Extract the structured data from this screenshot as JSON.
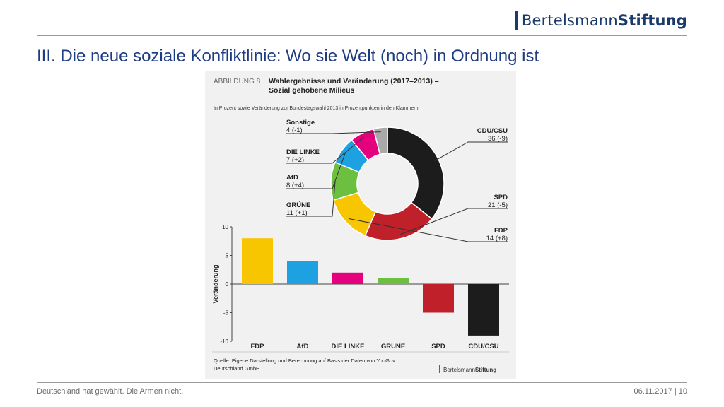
{
  "header": {
    "logo_light": "Bertelsmann",
    "logo_bold": "Stiftung",
    "title": "III. Die neue soziale Konfliktlinie: Wo sie Welt (noch) in Ordnung ist"
  },
  "footer": {
    "left": "Deutschland hat gewählt. Die Armen nicht.",
    "date": "06.11.2017",
    "sep": "|",
    "page": "10"
  },
  "figure": {
    "label": "ABBILDUNG 8",
    "title_line1": "Wahlergebnisse und Veränderung (2017–2013) –",
    "title_line2": "Sozial gehobene Milieus",
    "subtitle": "In Prozent sowie Veränderung zur Bundestagswahl 2013 in Prozentpunkten in den Klammern",
    "source_line1": "Quelle: Eigene Darstellung und Berechnung auf Basis der Daten von YouGov",
    "source_line2": "Deutschland GmbH.",
    "small_logo_light": "Bertelsmann",
    "small_logo_bold": "Stiftung"
  },
  "chart_data": [
    {
      "type": "pie",
      "donut": true,
      "slices": [
        {
          "name": "CDU/CSU",
          "value": 36,
          "label": "36 (-9)",
          "color": "#1c1c1c"
        },
        {
          "name": "SPD",
          "value": 21,
          "label": "21 (-5)",
          "color": "#c0202a"
        },
        {
          "name": "FDP",
          "value": 14,
          "label": "14 (+8)",
          "color": "#f7c600"
        },
        {
          "name": "GRÜNE",
          "value": 11,
          "label": "11 (+1)",
          "color": "#6cbf3f"
        },
        {
          "name": "AfD",
          "value": 8,
          "label": "8 (+4)",
          "color": "#1ea1e0"
        },
        {
          "name": "DIE LINKE",
          "value": 7,
          "label": "7 (+2)",
          "color": "#e5007d"
        },
        {
          "name": "Sonstige",
          "value": 4,
          "label": "4 (-1)",
          "color": "#a9a9a9"
        }
      ]
    },
    {
      "type": "bar",
      "categories": [
        "FDP",
        "AfD",
        "DIE LINKE",
        "GRÜNE",
        "SPD",
        "CDU/CSU"
      ],
      "values": [
        8,
        4,
        2,
        1,
        -5,
        -9
      ],
      "colors": [
        "#f7c600",
        "#1ea1e0",
        "#e5007d",
        "#6cbf3f",
        "#c0202a",
        "#1c1c1c"
      ],
      "ylabel": "Veränderung",
      "ylim": [
        -10,
        10
      ],
      "yticks": [
        10,
        5,
        0,
        -5,
        -10
      ],
      "ytick_labels": [
        "10",
        "5",
        "0",
        "-5",
        "-10"
      ]
    }
  ]
}
